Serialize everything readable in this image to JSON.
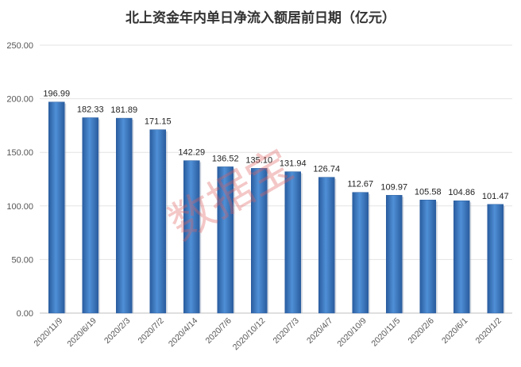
{
  "chart_data": {
    "type": "bar",
    "title": "北上资金年内单日净流入额居前日期（亿元）",
    "categories": [
      "2020/11/9",
      "2020/6/19",
      "2020/2/3",
      "2020/7/2",
      "2020/4/14",
      "2020/7/6",
      "2020/10/12",
      "2020/7/3",
      "2020/4/7",
      "2020/10/9",
      "2020/11/5",
      "2020/2/6",
      "2020/6/1",
      "2020/1/2"
    ],
    "values": [
      196.99,
      182.33,
      181.89,
      171.15,
      142.29,
      136.52,
      135.1,
      131.94,
      126.74,
      112.67,
      109.97,
      105.58,
      104.86,
      101.47
    ],
    "value_labels": [
      "196.99",
      "182.33",
      "181.89",
      "171.15",
      "142.29",
      "136.52",
      "135.10",
      "131.94",
      "126.74",
      "112.67",
      "109.97",
      "105.58",
      "104.86",
      "101.47"
    ],
    "ylim": [
      0,
      250
    ],
    "yticks": [
      "0.00",
      "50.00",
      "100.00",
      "150.00",
      "200.00",
      "250.00"
    ],
    "grid": true,
    "bar_color": "#3a74bf",
    "watermark": "数据宝"
  }
}
